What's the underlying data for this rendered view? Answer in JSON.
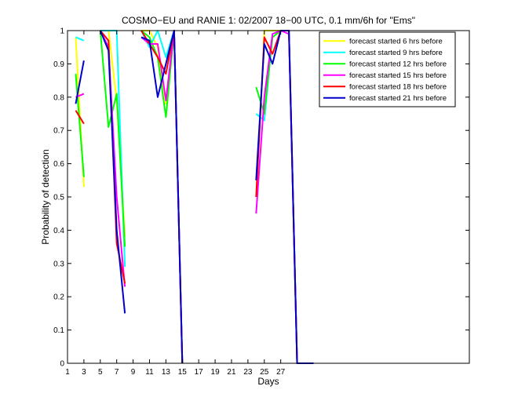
{
  "chart_data": {
    "type": "line",
    "title": "COSMO−EU and RANIE 1: 02/2007 18−00 UTC, 0.1 mm/6h for \"Ems\"",
    "xlabel": "Days",
    "ylabel": "Probability of detection",
    "xlim": [
      1,
      50
    ],
    "ylim": [
      0,
      1
    ],
    "x_ticks": [
      1,
      3,
      5,
      7,
      9,
      11,
      13,
      15,
      17,
      19,
      21,
      23,
      25,
      27
    ],
    "x_tick_labels": [
      "1",
      "3",
      "5",
      "7",
      "9",
      "11",
      "13",
      "15",
      "17",
      "19",
      "21",
      "23",
      "25",
      "27"
    ],
    "y_ticks": [
      0,
      0.1,
      0.2,
      0.3,
      0.4,
      0.5,
      0.6,
      0.7,
      0.8,
      0.9,
      1
    ],
    "y_tick_labels": [
      "0",
      "0.1",
      "0.2",
      "0.3",
      "0.4",
      "0.5",
      "0.6",
      "0.7",
      "0.8",
      "0.9",
      "1"
    ],
    "legend_position": "top-right",
    "grid": false,
    "series": [
      {
        "name": "forecast started 6 hrs before",
        "color": "#ffff00",
        "segments": [
          [
            [
              2,
              0.98
            ],
            [
              3,
              0.53
            ]
          ],
          [
            [
              5,
              1.0
            ],
            [
              6,
              1.0
            ],
            [
              7,
              0.79
            ],
            [
              8,
              0.38
            ]
          ],
          [
            [
              10,
              1.0
            ],
            [
              11,
              1.0
            ],
            [
              12,
              0.95
            ],
            [
              13,
              0.78
            ],
            [
              14,
              1.0
            ],
            [
              15,
              0.0
            ]
          ],
          [
            [
              24,
              0.5
            ],
            [
              25,
              1.0
            ],
            [
              26,
              1.0
            ],
            [
              27,
              1.0
            ],
            [
              28,
              1.0
            ],
            [
              29,
              0.0
            ],
            [
              31,
              0.0
            ]
          ]
        ]
      },
      {
        "name": "forecast started 9 hrs before",
        "color": "#00ffff",
        "segments": [
          [
            [
              2,
              0.98
            ],
            [
              3,
              0.97
            ]
          ],
          [
            [
              5,
              1.0
            ],
            [
              6,
              1.0
            ],
            [
              7,
              1.0
            ],
            [
              8,
              0.29
            ]
          ],
          [
            [
              10,
              1.0
            ],
            [
              11,
              0.95
            ],
            [
              12,
              1.0
            ],
            [
              13,
              0.92
            ],
            [
              14,
              1.0
            ],
            [
              15,
              0.0
            ]
          ],
          [
            [
              24,
              0.75
            ],
            [
              25,
              0.73
            ],
            [
              26,
              0.99
            ],
            [
              27,
              1.0
            ],
            [
              28,
              1.0
            ],
            [
              29,
              0.0
            ],
            [
              31,
              0.0
            ]
          ]
        ]
      },
      {
        "name": "forecast started 12 hrs before",
        "color": "#00ff00",
        "segments": [
          [
            [
              2,
              0.87
            ],
            [
              3,
              0.56
            ]
          ],
          [
            [
              5,
              1.0
            ],
            [
              6,
              0.71
            ],
            [
              7,
              0.81
            ],
            [
              8,
              0.35
            ]
          ],
          [
            [
              10,
              1.0
            ],
            [
              11,
              0.98
            ],
            [
              12,
              0.92
            ],
            [
              13,
              0.74
            ],
            [
              14,
              1.0
            ],
            [
              15,
              0.0
            ]
          ],
          [
            [
              24,
              0.83
            ],
            [
              25,
              0.75
            ],
            [
              26,
              0.98
            ],
            [
              27,
              1.0
            ],
            [
              28,
              1.0
            ],
            [
              29,
              0.0
            ],
            [
              31,
              0.0
            ]
          ]
        ]
      },
      {
        "name": "forecast started 15 hrs before",
        "color": "#ff00ff",
        "segments": [
          [
            [
              2,
              0.8
            ],
            [
              3,
              0.81
            ]
          ],
          [
            [
              5,
              1.0
            ],
            [
              6,
              0.95
            ],
            [
              7,
              0.5
            ],
            [
              8,
              0.23
            ]
          ],
          [
            [
              10,
              0.98
            ],
            [
              11,
              0.96
            ],
            [
              12,
              0.96
            ],
            [
              13,
              0.79
            ],
            [
              14,
              1.0
            ],
            [
              15,
              0.0
            ]
          ],
          [
            [
              24,
              0.45
            ],
            [
              25,
              0.8
            ],
            [
              26,
              0.99
            ],
            [
              27,
              1.0
            ],
            [
              28,
              0.99
            ],
            [
              29,
              0.0
            ],
            [
              31,
              0.0
            ]
          ]
        ]
      },
      {
        "name": "forecast started 18 hrs before",
        "color": "#ff0000",
        "segments": [
          [
            [
              2,
              0.76
            ],
            [
              3,
              0.72
            ]
          ],
          [
            [
              5,
              1.0
            ],
            [
              6,
              0.97
            ],
            [
              7,
              0.36
            ],
            [
              8,
              0.24
            ]
          ],
          [
            [
              10,
              1.0
            ],
            [
              11,
              0.96
            ],
            [
              12,
              0.92
            ],
            [
              13,
              0.87
            ],
            [
              14,
              1.0
            ],
            [
              15,
              0.0
            ]
          ],
          [
            [
              24,
              0.5
            ],
            [
              25,
              0.98
            ],
            [
              26,
              0.93
            ],
            [
              27,
              1.0
            ],
            [
              28,
              1.0
            ],
            [
              29,
              0.0
            ],
            [
              31,
              0.0
            ]
          ]
        ]
      },
      {
        "name": "forecast started 21 hrs before",
        "color": "#0000cc",
        "segments": [
          [
            [
              2,
              0.78
            ],
            [
              3,
              0.91
            ]
          ],
          [
            [
              5,
              1.0
            ],
            [
              6,
              0.94
            ],
            [
              7,
              0.4
            ],
            [
              8,
              0.15
            ]
          ],
          [
            [
              10,
              0.98
            ],
            [
              11,
              0.97
            ],
            [
              12,
              0.8
            ],
            [
              13,
              0.9
            ],
            [
              14,
              1.0
            ],
            [
              15,
              0.0
            ]
          ],
          [
            [
              24,
              0.55
            ],
            [
              25,
              0.96
            ],
            [
              26,
              0.9
            ],
            [
              27,
              1.0
            ],
            [
              28,
              1.0
            ],
            [
              29,
              0.0
            ],
            [
              31,
              0.0
            ]
          ]
        ]
      }
    ]
  }
}
